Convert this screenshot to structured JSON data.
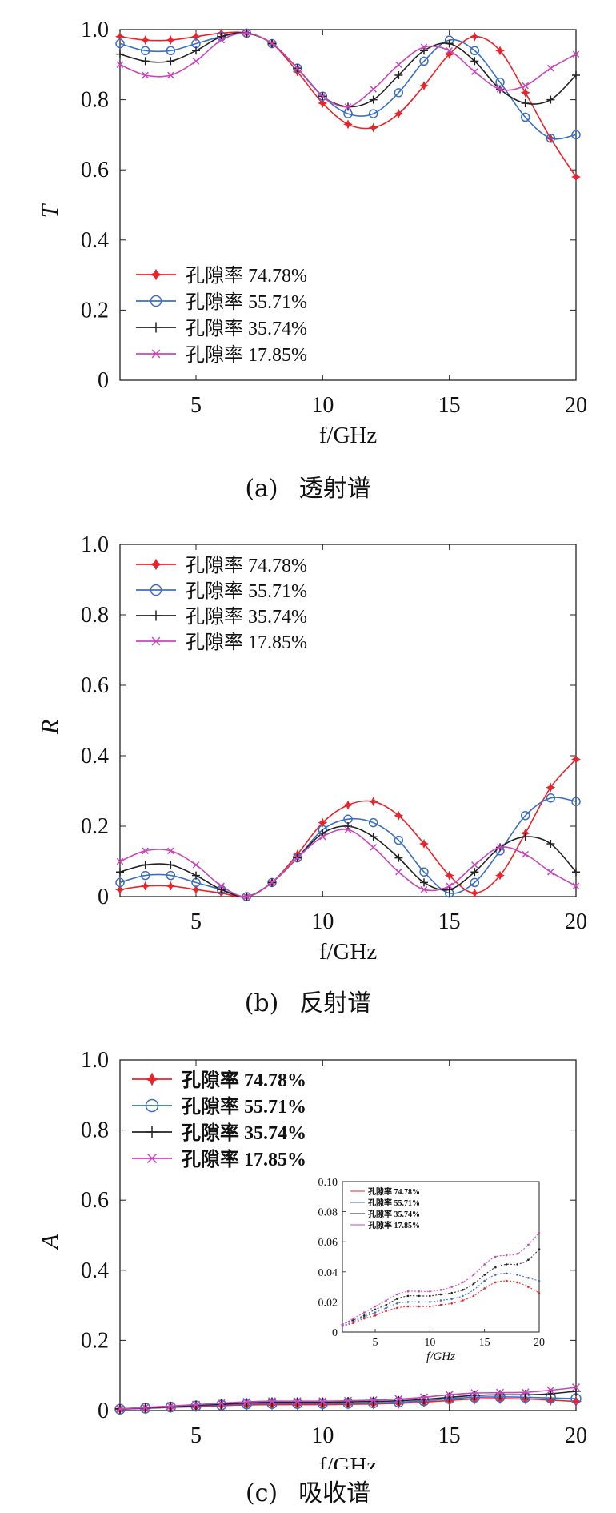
{
  "chart_data": [
    {
      "id": "a",
      "type": "line",
      "ylabel": "T",
      "xlabel": "f/GHz",
      "caption": {
        "letter": "(a)",
        "title": "透射谱"
      },
      "xlim": [
        2,
        20
      ],
      "ylim": [
        0,
        1.0
      ],
      "xticks": [
        "5",
        "10",
        "15",
        "20"
      ],
      "yticks": [
        "0",
        "0.2",
        "0.4",
        "0.6",
        "0.8",
        "1.0"
      ],
      "legend_position": "lower-left",
      "x": [
        2,
        3,
        4,
        5,
        6,
        7,
        8,
        9,
        10,
        11,
        12,
        13,
        14,
        15,
        16,
        17,
        18,
        19,
        20
      ],
      "series": [
        {
          "name": "孔隙率 74.78%",
          "color": "#e8242a",
          "marker": "star",
          "values": [
            0.98,
            0.97,
            0.97,
            0.98,
            0.99,
            0.99,
            0.96,
            0.88,
            0.79,
            0.73,
            0.72,
            0.76,
            0.84,
            0.93,
            0.98,
            0.94,
            0.82,
            0.69,
            0.58
          ]
        },
        {
          "name": "孔隙率 55.71%",
          "color": "#3b6fc4",
          "marker": "circle",
          "values": [
            0.96,
            0.94,
            0.94,
            0.96,
            0.98,
            0.99,
            0.96,
            0.89,
            0.81,
            0.76,
            0.76,
            0.82,
            0.91,
            0.97,
            0.94,
            0.85,
            0.75,
            0.69,
            0.7
          ]
        },
        {
          "name": "孔隙率 35.74%",
          "color": "#222222",
          "marker": "plus",
          "values": [
            0.93,
            0.91,
            0.91,
            0.94,
            0.98,
            0.99,
            0.96,
            0.89,
            0.81,
            0.78,
            0.8,
            0.87,
            0.94,
            0.96,
            0.91,
            0.83,
            0.79,
            0.8,
            0.87
          ]
        },
        {
          "name": "孔隙率 17.85%",
          "color": "#c847b8",
          "marker": "x",
          "values": [
            0.9,
            0.87,
            0.87,
            0.91,
            0.97,
            0.99,
            0.96,
            0.89,
            0.81,
            0.78,
            0.83,
            0.9,
            0.95,
            0.94,
            0.88,
            0.83,
            0.84,
            0.89,
            0.93
          ]
        }
      ]
    },
    {
      "id": "b",
      "type": "line",
      "ylabel": "R",
      "xlabel": "f/GHz",
      "caption": {
        "letter": "(b)",
        "title": "反射谱"
      },
      "xlim": [
        2,
        20
      ],
      "ylim": [
        0,
        1.0
      ],
      "xticks": [
        "5",
        "10",
        "15",
        "20"
      ],
      "yticks": [
        "0",
        "0.2",
        "0.4",
        "0.6",
        "0.8",
        "1.0"
      ],
      "legend_position": "upper-left",
      "x": [
        2,
        3,
        4,
        5,
        6,
        7,
        8,
        9,
        10,
        11,
        12,
        13,
        14,
        15,
        16,
        17,
        18,
        19,
        20
      ],
      "series": [
        {
          "name": "孔隙率 74.78%",
          "color": "#e8242a",
          "marker": "star",
          "values": [
            0.02,
            0.03,
            0.03,
            0.02,
            0.01,
            0.0,
            0.04,
            0.12,
            0.21,
            0.26,
            0.27,
            0.23,
            0.15,
            0.06,
            0.01,
            0.06,
            0.18,
            0.31,
            0.39
          ]
        },
        {
          "name": "孔隙率 55.71%",
          "color": "#3b6fc4",
          "marker": "circle",
          "values": [
            0.04,
            0.06,
            0.06,
            0.04,
            0.02,
            0.0,
            0.04,
            0.11,
            0.19,
            0.22,
            0.21,
            0.16,
            0.07,
            0.01,
            0.04,
            0.13,
            0.23,
            0.28,
            0.27
          ]
        },
        {
          "name": "孔隙率 35.74%",
          "color": "#222222",
          "marker": "plus",
          "values": [
            0.07,
            0.09,
            0.09,
            0.06,
            0.02,
            0.0,
            0.04,
            0.11,
            0.18,
            0.2,
            0.17,
            0.11,
            0.04,
            0.02,
            0.07,
            0.14,
            0.17,
            0.15,
            0.07
          ]
        },
        {
          "name": "孔隙率 17.85%",
          "color": "#c847b8",
          "marker": "x",
          "values": [
            0.1,
            0.13,
            0.13,
            0.09,
            0.03,
            0.0,
            0.04,
            0.11,
            0.17,
            0.19,
            0.14,
            0.07,
            0.02,
            0.03,
            0.09,
            0.14,
            0.12,
            0.07,
            0.03
          ]
        }
      ]
    },
    {
      "id": "c",
      "type": "line",
      "ylabel": "A",
      "xlabel": "f/GHz",
      "caption": {
        "letter": "(c)",
        "title": "吸收谱"
      },
      "xlim": [
        2,
        20
      ],
      "ylim": [
        0,
        1.0
      ],
      "xticks": [
        "5",
        "10",
        "15",
        "20"
      ],
      "yticks": [
        "0",
        "0.2",
        "0.4",
        "0.6",
        "0.8",
        "1.0"
      ],
      "legend_position": "upper-left",
      "x": [
        2,
        3,
        4,
        5,
        6,
        7,
        8,
        9,
        10,
        11,
        12,
        13,
        14,
        15,
        16,
        17,
        18,
        19,
        20
      ],
      "series": [
        {
          "name": "孔隙率 74.78%",
          "color": "#e8242a",
          "marker": "star",
          "values": [
            0.004,
            0.006,
            0.009,
            0.011,
            0.014,
            0.016,
            0.017,
            0.017,
            0.017,
            0.018,
            0.019,
            0.021,
            0.024,
            0.029,
            0.033,
            0.034,
            0.033,
            0.03,
            0.026
          ]
        },
        {
          "name": "孔隙率 55.71%",
          "color": "#3b6fc4",
          "marker": "circle",
          "values": [
            0.004,
            0.007,
            0.01,
            0.013,
            0.016,
            0.019,
            0.02,
            0.02,
            0.02,
            0.021,
            0.022,
            0.024,
            0.028,
            0.034,
            0.038,
            0.039,
            0.038,
            0.036,
            0.034
          ]
        },
        {
          "name": "孔隙率 35.74%",
          "color": "#222222",
          "marker": "plus",
          "values": [
            0.005,
            0.008,
            0.011,
            0.015,
            0.018,
            0.022,
            0.024,
            0.024,
            0.024,
            0.025,
            0.026,
            0.028,
            0.032,
            0.038,
            0.043,
            0.045,
            0.045,
            0.048,
            0.055
          ]
        },
        {
          "name": "孔隙率 17.85%",
          "color": "#c847b8",
          "marker": "x",
          "values": [
            0.005,
            0.009,
            0.013,
            0.017,
            0.021,
            0.025,
            0.027,
            0.027,
            0.027,
            0.028,
            0.03,
            0.033,
            0.038,
            0.045,
            0.05,
            0.051,
            0.052,
            0.058,
            0.066
          ]
        }
      ],
      "inset": {
        "ylim": [
          0,
          0.1
        ],
        "xlim": [
          2,
          20
        ],
        "xticks": [
          "5",
          "10",
          "15",
          "20"
        ],
        "yticks": [
          "0",
          "0.02",
          "0.04",
          "0.06",
          "0.08",
          "0.10"
        ],
        "xlabel": "f/GHz"
      }
    }
  ]
}
